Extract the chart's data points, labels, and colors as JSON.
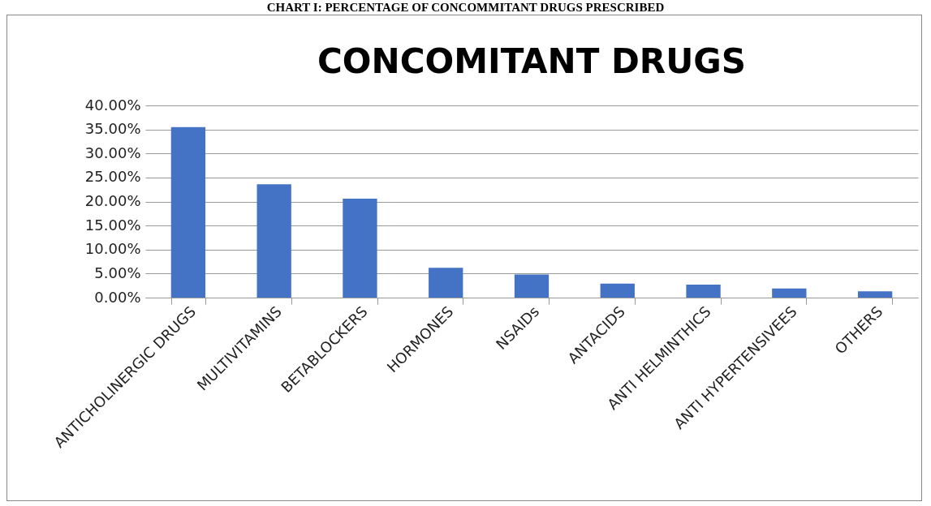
{
  "chart_data": {
    "type": "bar",
    "title": "CONCOMITANT DRUGS",
    "annotations": [
      "CHART I: PERCENTAGE OF CONCOMMITANT DRUGS PRESCRIBED"
    ],
    "categories": [
      "ANTICHOLINERGIC DRUGS",
      "MULTIVITAMINS",
      "BETABLOCKERS",
      "HORMONES",
      "NSAIDs",
      "ANTACIDS",
      "ANTI HELMINTHICS",
      "ANTI HYPERTENSIVEES",
      "OTHERS"
    ],
    "values": [
      35.5,
      23.6,
      20.6,
      6.2,
      4.8,
      2.9,
      2.7,
      1.9,
      1.3
    ],
    "color": "#4472c4",
    "ylim": [
      0,
      40
    ],
    "yticks": [
      {
        "value": 0,
        "label": "0.00%"
      },
      {
        "value": 5,
        "label": "5.00%"
      },
      {
        "value": 10,
        "label": "10.00%"
      },
      {
        "value": 15,
        "label": "15.00%"
      },
      {
        "value": 20,
        "label": "20.00%"
      },
      {
        "value": 25,
        "label": "25.00%"
      },
      {
        "value": 30,
        "label": "30.00%"
      },
      {
        "value": 35,
        "label": "35.00%"
      },
      {
        "value": 40,
        "label": "40.00%"
      }
    ],
    "grid": "y"
  }
}
